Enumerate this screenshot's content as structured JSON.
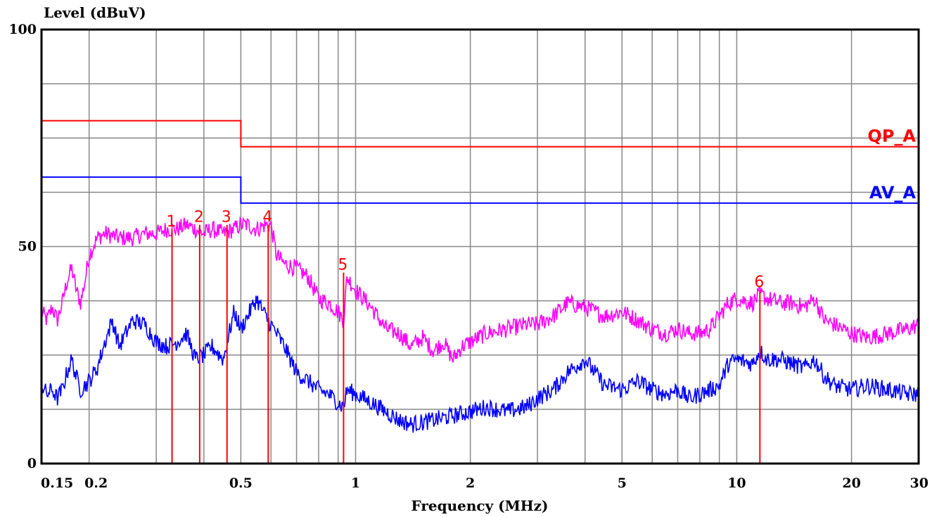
{
  "chart_data": {
    "type": "line",
    "ylabel": "Level (dBuV)",
    "xlabel": "Frequency (MHz)",
    "x_scale": "log",
    "xlim": [
      0.15,
      30
    ],
    "ylim": [
      0,
      100
    ],
    "grid": true,
    "y_ticks": [
      {
        "value": 0,
        "label": "0"
      },
      {
        "value": 50,
        "label": "50"
      },
      {
        "value": 100,
        "label": "100"
      }
    ],
    "x_ticks": [
      {
        "value": 0.15,
        "label": "0.15"
      },
      {
        "value": 0.2,
        "label": "0.2"
      },
      {
        "value": 0.5,
        "label": "0.5"
      },
      {
        "value": 1,
        "label": "1"
      },
      {
        "value": 2,
        "label": "2"
      },
      {
        "value": 5,
        "label": "5"
      },
      {
        "value": 10,
        "label": "10"
      },
      {
        "value": 20,
        "label": "20"
      },
      {
        "value": 30,
        "label": "30"
      }
    ],
    "limits": [
      {
        "label": "QP_A",
        "color": "#ff0000",
        "segments": [
          [
            0.15,
            79
          ],
          [
            0.5,
            79
          ],
          [
            0.5,
            73
          ],
          [
            30,
            73
          ]
        ]
      },
      {
        "label": "AV_A",
        "color": "#0000ff",
        "segments": [
          [
            0.15,
            66
          ],
          [
            0.5,
            66
          ],
          [
            0.5,
            60
          ],
          [
            30,
            60
          ]
        ]
      }
    ],
    "series": [
      {
        "color": "#ff00ff",
        "points": [
          [
            0.15,
            35
          ],
          [
            0.155,
            33
          ],
          [
            0.16,
            36
          ],
          [
            0.165,
            33
          ],
          [
            0.17,
            37
          ],
          [
            0.175,
            42
          ],
          [
            0.18,
            45
          ],
          [
            0.185,
            40
          ],
          [
            0.19,
            37
          ],
          [
            0.195,
            42
          ],
          [
            0.2,
            48
          ],
          [
            0.21,
            52
          ],
          [
            0.22,
            53
          ],
          [
            0.24,
            52
          ],
          [
            0.26,
            52
          ],
          [
            0.28,
            53
          ],
          [
            0.3,
            53
          ],
          [
            0.32,
            54
          ],
          [
            0.34,
            54
          ],
          [
            0.36,
            55
          ],
          [
            0.38,
            54
          ],
          [
            0.4,
            53
          ],
          [
            0.42,
            54
          ],
          [
            0.45,
            53
          ],
          [
            0.48,
            54
          ],
          [
            0.5,
            55
          ],
          [
            0.52,
            55
          ],
          [
            0.55,
            54
          ],
          [
            0.58,
            55
          ],
          [
            0.6,
            55
          ],
          [
            0.62,
            48
          ],
          [
            0.65,
            46
          ],
          [
            0.7,
            45
          ],
          [
            0.75,
            43
          ],
          [
            0.8,
            38
          ],
          [
            0.85,
            37
          ],
          [
            0.9,
            35
          ],
          [
            0.93,
            33
          ],
          [
            0.95,
            43
          ],
          [
            1.0,
            40
          ],
          [
            1.05,
            38
          ],
          [
            1.1,
            36
          ],
          [
            1.2,
            31
          ],
          [
            1.3,
            30
          ],
          [
            1.4,
            27
          ],
          [
            1.5,
            29
          ],
          [
            1.6,
            26
          ],
          [
            1.7,
            28
          ],
          [
            1.8,
            24
          ],
          [
            1.9,
            27
          ],
          [
            2.0,
            28
          ],
          [
            2.2,
            30
          ],
          [
            2.5,
            31
          ],
          [
            2.8,
            32
          ],
          [
            3.0,
            32
          ],
          [
            3.3,
            34
          ],
          [
            3.6,
            37
          ],
          [
            4.0,
            36
          ],
          [
            4.5,
            34
          ],
          [
            5.0,
            35
          ],
          [
            5.5,
            33
          ],
          [
            6.0,
            31
          ],
          [
            6.5,
            30
          ],
          [
            7.0,
            31
          ],
          [
            7.5,
            30
          ],
          [
            8.0,
            30
          ],
          [
            8.5,
            31
          ],
          [
            9.0,
            34
          ],
          [
            9.5,
            37
          ],
          [
            10,
            38
          ],
          [
            11,
            37
          ],
          [
            11.5,
            39
          ],
          [
            12,
            38
          ],
          [
            13,
            37
          ],
          [
            14,
            37
          ],
          [
            15,
            36
          ],
          [
            16,
            38
          ],
          [
            17,
            33
          ],
          [
            18,
            32
          ],
          [
            20,
            30
          ],
          [
            22,
            29
          ],
          [
            25,
            30
          ],
          [
            28,
            31
          ],
          [
            30,
            32
          ]
        ]
      },
      {
        "color": "#0000ff",
        "points": [
          [
            0.15,
            18
          ],
          [
            0.155,
            16
          ],
          [
            0.16,
            17
          ],
          [
            0.165,
            15
          ],
          [
            0.17,
            17
          ],
          [
            0.175,
            21
          ],
          [
            0.18,
            24
          ],
          [
            0.185,
            20
          ],
          [
            0.19,
            17
          ],
          [
            0.2,
            19
          ],
          [
            0.21,
            22
          ],
          [
            0.22,
            28
          ],
          [
            0.23,
            33
          ],
          [
            0.24,
            27
          ],
          [
            0.26,
            33
          ],
          [
            0.28,
            32
          ],
          [
            0.3,
            28
          ],
          [
            0.32,
            27
          ],
          [
            0.34,
            28
          ],
          [
            0.36,
            30
          ],
          [
            0.38,
            24
          ],
          [
            0.4,
            25
          ],
          [
            0.42,
            27
          ],
          [
            0.45,
            24
          ],
          [
            0.48,
            35
          ],
          [
            0.5,
            31
          ],
          [
            0.55,
            38
          ],
          [
            0.58,
            34
          ],
          [
            0.6,
            32
          ],
          [
            0.62,
            30
          ],
          [
            0.65,
            27
          ],
          [
            0.7,
            21
          ],
          [
            0.75,
            19
          ],
          [
            0.8,
            17
          ],
          [
            0.85,
            16
          ],
          [
            0.9,
            14
          ],
          [
            0.93,
            13
          ],
          [
            0.95,
            17
          ],
          [
            1.0,
            16
          ],
          [
            1.1,
            14
          ],
          [
            1.2,
            12
          ],
          [
            1.3,
            10
          ],
          [
            1.4,
            9
          ],
          [
            1.6,
            10
          ],
          [
            1.8,
            11
          ],
          [
            2.0,
            12
          ],
          [
            2.2,
            13
          ],
          [
            2.5,
            12
          ],
          [
            2.8,
            13
          ],
          [
            3.0,
            15
          ],
          [
            3.3,
            17
          ],
          [
            3.6,
            21
          ],
          [
            4.0,
            24
          ],
          [
            4.5,
            18
          ],
          [
            5.0,
            17
          ],
          [
            5.5,
            19
          ],
          [
            6.0,
            17
          ],
          [
            6.5,
            16
          ],
          [
            7.0,
            17
          ],
          [
            7.5,
            15
          ],
          [
            8.0,
            16
          ],
          [
            8.5,
            17
          ],
          [
            9.0,
            18
          ],
          [
            9.5,
            23
          ],
          [
            10,
            24
          ],
          [
            11,
            23
          ],
          [
            11.5,
            26
          ],
          [
            12,
            24
          ],
          [
            13,
            24
          ],
          [
            14,
            23
          ],
          [
            15,
            22
          ],
          [
            16,
            24
          ],
          [
            17,
            20
          ],
          [
            18,
            18
          ],
          [
            20,
            17
          ],
          [
            22,
            18
          ],
          [
            25,
            17
          ],
          [
            28,
            16
          ],
          [
            30,
            16
          ]
        ]
      }
    ],
    "markers": [
      {
        "label": "1",
        "x": 0.33,
        "y": 54
      },
      {
        "label": "2",
        "x": 0.39,
        "y": 55
      },
      {
        "label": "3",
        "x": 0.46,
        "y": 55
      },
      {
        "label": "4",
        "x": 0.59,
        "y": 55
      },
      {
        "label": "5",
        "x": 0.93,
        "y": 44
      },
      {
        "label": "6",
        "x": 11.5,
        "y": 40
      }
    ],
    "marker_color": "#ff0000"
  }
}
